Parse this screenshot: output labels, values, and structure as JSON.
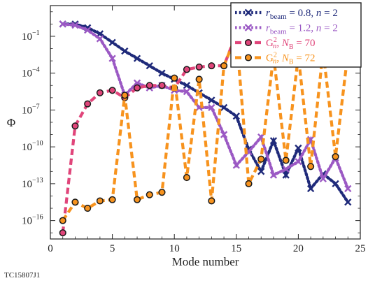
{
  "footer_code": "TC15807J1",
  "chart_data": {
    "type": "line",
    "xlabel": "Mode number",
    "ylabel": "Φ",
    "xlim": [
      0,
      25
    ],
    "ylim_log10": [
      -17.5,
      1.5
    ],
    "y_scale": "log",
    "x_ticks": [
      0,
      5,
      10,
      15,
      20,
      25
    ],
    "y_ticks": [
      {
        "exp": -1,
        "label": "10",
        "sup": "−1"
      },
      {
        "exp": -4,
        "label": "10",
        "sup": "−4"
      },
      {
        "exp": -7,
        "label": "10",
        "sup": "−7"
      },
      {
        "exp": -10,
        "label": "10",
        "sup": "−10"
      },
      {
        "exp": -13,
        "label": "10",
        "sup": "−13"
      },
      {
        "exp": -16,
        "label": "10",
        "sup": "−16"
      }
    ],
    "grid": false,
    "legend_position": "top-right",
    "series": [
      {
        "name": "r_beam = 0.8, n = 2",
        "legend_parts": {
          "sym": "r",
          "sub": "beam",
          "rest": " = 0.8, n = 2"
        },
        "color": "#1f2a7a",
        "marker": "x",
        "linestyle": "dotted",
        "x": [
          1,
          2,
          3,
          4,
          5,
          6,
          7,
          8,
          9,
          10,
          11,
          12,
          13,
          14,
          15,
          16,
          17,
          18,
          19,
          20,
          21,
          22,
          23,
          24
        ],
        "log10_y": [
          0.0,
          0.0,
          -0.3,
          -0.8,
          -1.5,
          -2.2,
          -2.8,
          -3.4,
          -4.0,
          -4.5,
          -5.0,
          -5.6,
          -6.2,
          -6.8,
          -7.5,
          -10.2,
          -12.0,
          -9.5,
          -12.3,
          -10.1,
          -13.4,
          -12.2,
          -13.0,
          -14.5
        ]
      },
      {
        "name": "r_beam = 1.2, n = 2",
        "legend_parts": {
          "sym": "r",
          "sub": "beam",
          "rest": " = 1.2, n = 2"
        },
        "color": "#9b59c4",
        "marker": "x",
        "linestyle": "dotted",
        "x": [
          1,
          2,
          3,
          4,
          5,
          6,
          7,
          8,
          9,
          10,
          11,
          12,
          13,
          14,
          15,
          16,
          17,
          18,
          19,
          20,
          21,
          22,
          23,
          24
        ],
        "log10_y": [
          0.0,
          -0.1,
          -0.5,
          -1.2,
          -2.8,
          -5.8,
          -4.8,
          -5.2,
          -5.0,
          -5.4,
          -5.5,
          -6.8,
          -6.8,
          -9.0,
          -11.5,
          -10.4,
          -9.2,
          -12.3,
          -11.8,
          -11.2,
          -9.4,
          -12.6,
          -10.9,
          -13.4
        ]
      },
      {
        "name": "G_n^2, N_B = 70",
        "legend_parts": {
          "sym": "G",
          "sup": "2",
          "sub": "n",
          "rest": ", N_B = 70"
        },
        "color": "#e0457a",
        "marker": "o",
        "linestyle": "dashed",
        "x": [
          1,
          2,
          3,
          4,
          5,
          6,
          7,
          8,
          9,
          10,
          11,
          12,
          13,
          14,
          15,
          16,
          17,
          18,
          19,
          20,
          21,
          22,
          23,
          24
        ],
        "log10_y": [
          -17.0,
          -8.3,
          -6.5,
          -5.6,
          -5.4,
          -6.0,
          -5.2,
          -5.0,
          -5.0,
          -5.2,
          -3.7,
          -3.5,
          -3.4,
          -3.4,
          -0.8,
          -1.0,
          -1.7,
          -2.6,
          -2.6,
          -2.3,
          -2.2,
          -2.3,
          -2.3,
          -2.3
        ]
      },
      {
        "name": "G_n^2, N_B = 72",
        "legend_parts": {
          "sym": "G",
          "sup": "2",
          "sub": "n",
          "rest": ", N_B = 72"
        },
        "color": "#f7931e",
        "marker": "o",
        "linestyle": "dashed",
        "x": [
          1,
          2,
          3,
          4,
          5,
          6,
          7,
          8,
          9,
          10,
          11,
          12,
          13,
          14,
          15,
          16,
          17,
          18,
          19,
          20,
          21,
          22,
          23,
          24
        ],
        "log10_y": [
          -16.0,
          -14.5,
          -15.0,
          -14.4,
          -14.3,
          -5.8,
          -14.3,
          -13.9,
          -13.7,
          -4.4,
          -12.5,
          -4.5,
          -14.4,
          -3.4,
          -0.9,
          -13.0,
          -11.0,
          -2.6,
          -11.1,
          -2.6,
          -11.6,
          -2.2,
          -10.8,
          -2.3
        ]
      }
    ]
  }
}
